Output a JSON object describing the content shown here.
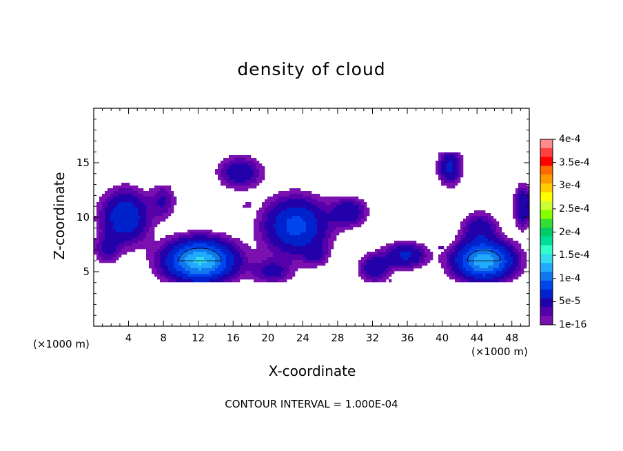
{
  "chart_data": {
    "type": "heatmap",
    "title": "density of cloud",
    "xlabel": "X-coordinate",
    "ylabel": "Z-coordinate",
    "x_unit_left": "(×1000 m)",
    "x_unit_right": "(×1000 m)",
    "footer": "CONTOUR INTERVAL = 1.000E-04",
    "xlim": [
      0,
      50
    ],
    "ylim": [
      0,
      20
    ],
    "x_ticks": [
      4,
      8,
      12,
      16,
      20,
      24,
      28,
      32,
      36,
      40,
      44,
      48
    ],
    "y_ticks": [
      5,
      10,
      15
    ],
    "x_tick_labels": [
      "4",
      "8",
      "12",
      "16",
      "20",
      "24",
      "28",
      "32",
      "36",
      "40",
      "44",
      "48"
    ],
    "y_tick_labels": [
      "5",
      "10",
      "15"
    ],
    "colorbar": {
      "range": [
        1e-16,
        0.0004
      ],
      "tick_labels": [
        "4e-4",
        "3.5e-4",
        "3e-4",
        "2.5e-4",
        "2e-4",
        "1.5e-4",
        "1e-4",
        "5e-5",
        "1e-16"
      ],
      "tick_values": [
        0.0004,
        0.00035,
        0.0003,
        0.00025,
        0.0002,
        0.00015,
        0.0001,
        5e-05,
        1e-16
      ],
      "colors": [
        "#ff8c8c",
        "#ff4040",
        "#ff0000",
        "#ff6a00",
        "#ff9900",
        "#ffcc00",
        "#ffff00",
        "#ccff33",
        "#88ff00",
        "#33dd33",
        "#00cc66",
        "#00dd99",
        "#33ffcc",
        "#33ddee",
        "#22aaff",
        "#1177ee",
        "#0044ee",
        "#0022cc",
        "#2200aa",
        "#5500aa",
        "#7a10b0"
      ]
    },
    "contour_levels": [
      1e-16,
      1e-05,
      2e-05,
      3e-05,
      5e-05,
      7.5e-05,
      0.0001,
      0.000125,
      0.00015
    ],
    "cloud_blobs": [
      {
        "x": 12.2,
        "z": 6.0,
        "amplitude": 0.000155,
        "sx": 2.6,
        "sz": 1.25
      },
      {
        "x": 44.8,
        "z": 6.0,
        "amplitude": 0.000145,
        "sx": 2.2,
        "sz": 1.15
      },
      {
        "x": 23.2,
        "z": 9.2,
        "amplitude": 8.5e-05,
        "sx": 2.4,
        "sz": 1.7
      },
      {
        "x": 3.6,
        "z": 10.0,
        "amplitude": 7.5e-05,
        "sx": 1.8,
        "sz": 1.6
      },
      {
        "x": 16.8,
        "z": 14.1,
        "amplitude": 4.5e-05,
        "sx": 1.7,
        "sz": 1.0
      },
      {
        "x": 40.9,
        "z": 14.6,
        "amplitude": 5.5e-05,
        "sx": 0.9,
        "sz": 1.1
      },
      {
        "x": 29.3,
        "z": 10.5,
        "amplitude": 4.5e-05,
        "sx": 1.4,
        "sz": 0.9
      },
      {
        "x": 35.8,
        "z": 6.5,
        "amplitude": 5.5e-05,
        "sx": 1.6,
        "sz": 0.8
      },
      {
        "x": 32.2,
        "z": 5.3,
        "amplitude": 4.5e-05,
        "sx": 1.2,
        "sz": 0.9
      },
      {
        "x": 20.5,
        "z": 5.0,
        "amplitude": 3.5e-05,
        "sx": 1.6,
        "sz": 0.8
      },
      {
        "x": 49.3,
        "z": 11.0,
        "amplitude": 5e-05,
        "sx": 0.7,
        "sz": 1.3
      },
      {
        "x": 44.3,
        "z": 9.0,
        "amplitude": 4e-05,
        "sx": 1.4,
        "sz": 1.0
      },
      {
        "x": 8.0,
        "z": 11.5,
        "amplitude": 3e-05,
        "sx": 1.0,
        "sz": 1.1
      },
      {
        "x": 1.5,
        "z": 7.0,
        "amplitude": 3e-05,
        "sx": 1.0,
        "sz": 0.9
      },
      {
        "x": 25.5,
        "z": 6.5,
        "amplitude": 2.5e-05,
        "sx": 1.0,
        "sz": 0.7
      }
    ],
    "cloud_layer": {
      "z_bottom": 4.0,
      "z_top": 15.9
    }
  }
}
